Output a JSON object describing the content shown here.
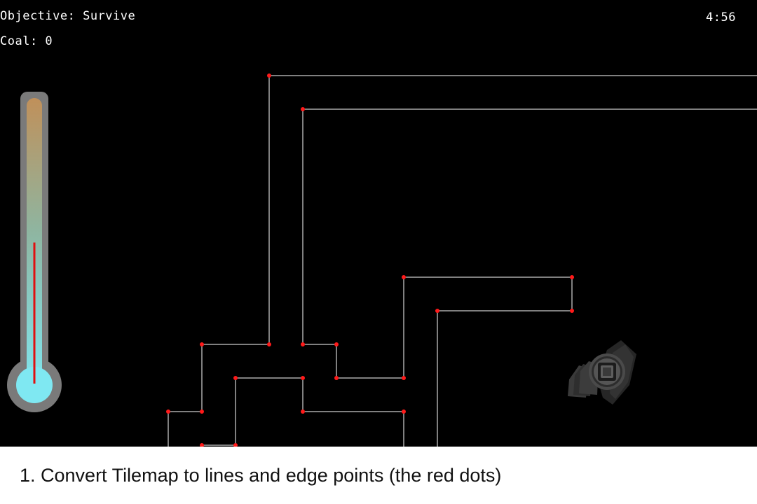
{
  "hud": {
    "objective": "Objective: Survive",
    "coal": "Coal: 0",
    "timer": "4:56"
  },
  "thermometer": {
    "temperature_level": 0.5,
    "indicator_color": "#e01010",
    "bulb_color": "#7fe8f2",
    "frame_color": "#7a7a7a"
  },
  "tilemap": {
    "line_color": "#ffffff",
    "edge_point_color": "#ff1a1a"
  },
  "player": {
    "icon": "furnace-sprite-icon"
  },
  "caption": {
    "text": "1. Convert Tilemap to lines and edge points (the red dots)"
  }
}
